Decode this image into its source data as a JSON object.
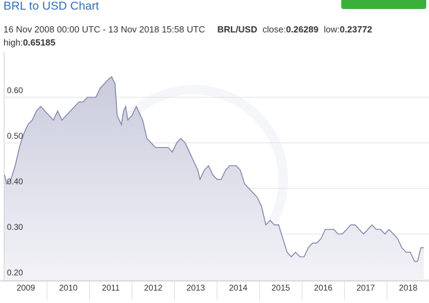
{
  "title": "BRL to USD Chart",
  "summary": {
    "range": "16 Nov 2008 00:00 UTC - 13 Nov 2018 15:58 UTC",
    "pair": "BRL/USD",
    "stats": [
      {
        "label": "close:",
        "value": 0.26289
      },
      {
        "label": "low:",
        "value": 0.23772
      },
      {
        "label": "high:",
        "value": 0.65185
      }
    ]
  },
  "chart_data": {
    "type": "area",
    "color": "#7f83a8",
    "x": [
      2009.0,
      2009.05,
      2009.15,
      2009.25,
      2009.35,
      2009.45,
      2009.55,
      2009.65,
      2009.75,
      2009.85,
      2009.95,
      2010.05,
      2010.15,
      2010.25,
      2010.35,
      2010.45,
      2010.55,
      2010.65,
      2010.75,
      2010.85,
      2010.95,
      2011.05,
      2011.15,
      2011.25,
      2011.35,
      2011.45,
      2011.52,
      2011.6,
      2011.65,
      2011.7,
      2011.75,
      2011.8,
      2011.85,
      2011.9,
      2012.0,
      2012.1,
      2012.15,
      2012.25,
      2012.35,
      2012.45,
      2012.55,
      2012.7,
      2012.85,
      2012.95,
      2013.05,
      2013.15,
      2013.25,
      2013.35,
      2013.45,
      2013.55,
      2013.6,
      2013.7,
      2013.8,
      2013.9,
      2014.0,
      2014.1,
      2014.2,
      2014.3,
      2014.45,
      2014.55,
      2014.65,
      2014.75,
      2014.85,
      2014.95,
      2015.05,
      2015.15,
      2015.25,
      2015.35,
      2015.45,
      2015.55,
      2015.65,
      2015.75,
      2015.85,
      2015.95,
      2016.05,
      2016.15,
      2016.25,
      2016.35,
      2016.45,
      2016.55,
      2016.65,
      2016.75,
      2016.85,
      2016.95,
      2017.05,
      2017.15,
      2017.25,
      2017.35,
      2017.45,
      2017.55,
      2017.65,
      2017.75,
      2017.85,
      2017.95,
      2018.05,
      2018.15,
      2018.25,
      2018.35,
      2018.45,
      2018.55,
      2018.65,
      2018.72,
      2018.8,
      2018.87
    ],
    "values": [
      0.43,
      0.41,
      0.42,
      0.45,
      0.49,
      0.52,
      0.54,
      0.55,
      0.57,
      0.58,
      0.57,
      0.56,
      0.55,
      0.57,
      0.55,
      0.56,
      0.57,
      0.58,
      0.59,
      0.59,
      0.6,
      0.6,
      0.6,
      0.62,
      0.63,
      0.64,
      0.645,
      0.63,
      0.56,
      0.55,
      0.54,
      0.57,
      0.58,
      0.55,
      0.56,
      0.58,
      0.57,
      0.55,
      0.51,
      0.5,
      0.49,
      0.49,
      0.49,
      0.48,
      0.5,
      0.51,
      0.5,
      0.48,
      0.46,
      0.44,
      0.42,
      0.44,
      0.45,
      0.43,
      0.42,
      0.42,
      0.44,
      0.45,
      0.45,
      0.44,
      0.41,
      0.4,
      0.39,
      0.38,
      0.36,
      0.32,
      0.33,
      0.32,
      0.32,
      0.29,
      0.26,
      0.25,
      0.26,
      0.25,
      0.25,
      0.27,
      0.28,
      0.28,
      0.29,
      0.31,
      0.31,
      0.31,
      0.3,
      0.3,
      0.31,
      0.32,
      0.32,
      0.31,
      0.3,
      0.31,
      0.32,
      0.31,
      0.31,
      0.3,
      0.31,
      0.3,
      0.29,
      0.27,
      0.26,
      0.26,
      0.24,
      0.24,
      0.27,
      0.27
    ],
    "xlim": [
      2008.99,
      2018.99
    ],
    "xticks": [
      {
        "value": 2009.5,
        "label": "2009"
      },
      {
        "value": 2010.5,
        "label": "2010"
      },
      {
        "value": 2011.5,
        "label": "2011"
      },
      {
        "value": 2012.5,
        "label": "2012"
      },
      {
        "value": 2013.5,
        "label": "2013"
      },
      {
        "value": 2014.5,
        "label": "2014"
      },
      {
        "value": 2015.5,
        "label": "2015"
      },
      {
        "value": 2016.5,
        "label": "2016"
      },
      {
        "value": 2017.5,
        "label": "2017"
      },
      {
        "value": 2018.5,
        "label": "2018"
      }
    ],
    "ylim": [
      0.2,
      0.7
    ],
    "yticks": [
      {
        "value": 0.2,
        "label": "0.20"
      },
      {
        "value": 0.3,
        "label": "0.30"
      },
      {
        "value": 0.4,
        "label": "0.40"
      },
      {
        "value": 0.5,
        "label": "0.50"
      },
      {
        "value": 0.6,
        "label": "0.60"
      }
    ],
    "grid": true
  }
}
